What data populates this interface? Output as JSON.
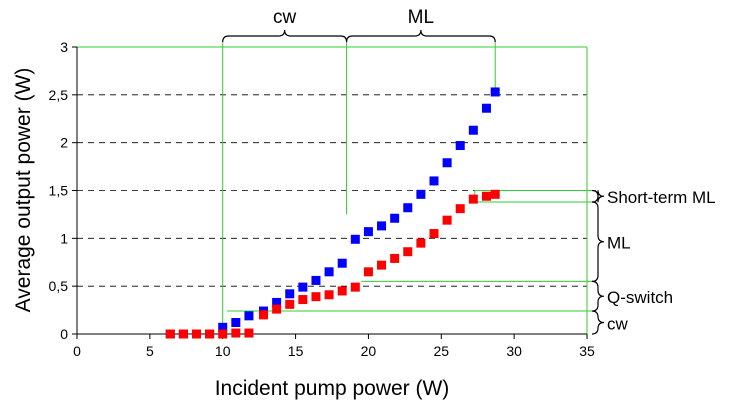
{
  "chart_data": {
    "type": "scatter",
    "xlabel": "Incident pump power (W)",
    "ylabel": "Average output power (W)",
    "xlim": [
      0,
      35
    ],
    "ylim": [
      0,
      3
    ],
    "x_ticks": [
      "0",
      "5",
      "10",
      "15",
      "20",
      "25",
      "30",
      "35"
    ],
    "y_ticks": [
      "0",
      "0,5",
      "1",
      "1,5",
      "2",
      "2,5",
      "3"
    ],
    "grid": "horizontal dashed",
    "series": [
      {
        "color": "#0000ff",
        "marker": "square",
        "points": [
          [
            6.4,
            0
          ],
          [
            7.3,
            0
          ],
          [
            8.2,
            0
          ],
          [
            9.1,
            0
          ],
          [
            10.0,
            0.07
          ],
          [
            10.9,
            0.12
          ],
          [
            11.8,
            0.19
          ],
          [
            12.8,
            0.24
          ],
          [
            13.7,
            0.33
          ],
          [
            14.6,
            0.42
          ],
          [
            15.5,
            0.49
          ],
          [
            16.4,
            0.56
          ],
          [
            17.3,
            0.65
          ],
          [
            18.2,
            0.74
          ],
          [
            19.1,
            0.99
          ],
          [
            20.0,
            1.07
          ],
          [
            20.9,
            1.13
          ],
          [
            21.8,
            1.21
          ],
          [
            22.7,
            1.32
          ],
          [
            23.6,
            1.46
          ],
          [
            24.5,
            1.6
          ],
          [
            25.4,
            1.79
          ],
          [
            26.3,
            1.97
          ],
          [
            27.2,
            2.13
          ],
          [
            28.1,
            2.36
          ],
          [
            28.7,
            2.53
          ]
        ]
      },
      {
        "color": "#ff0000",
        "marker": "square",
        "points": [
          [
            6.4,
            0
          ],
          [
            7.3,
            0
          ],
          [
            8.2,
            0
          ],
          [
            9.1,
            0
          ],
          [
            10.0,
            0
          ],
          [
            10.9,
            0.01
          ],
          [
            11.8,
            0.01
          ],
          [
            12.8,
            0.2
          ],
          [
            13.7,
            0.26
          ],
          [
            14.6,
            0.31
          ],
          [
            15.5,
            0.36
          ],
          [
            16.4,
            0.39
          ],
          [
            17.3,
            0.41
          ],
          [
            18.2,
            0.45
          ],
          [
            19.1,
            0.49
          ],
          [
            20.0,
            0.65
          ],
          [
            20.9,
            0.72
          ],
          [
            21.8,
            0.79
          ],
          [
            22.7,
            0.86
          ],
          [
            23.6,
            0.95
          ],
          [
            24.5,
            1.05
          ],
          [
            25.4,
            1.19
          ],
          [
            26.3,
            1.31
          ],
          [
            27.2,
            1.41
          ],
          [
            28.1,
            1.44
          ],
          [
            28.7,
            1.46
          ]
        ]
      }
    ],
    "regions_top": [
      {
        "label": "cw",
        "x_from": 10,
        "x_to": 18.5
      },
      {
        "label": "ML",
        "x_from": 18.5,
        "x_to": 28.7
      }
    ],
    "regions_right": [
      {
        "label": "Short-term ML",
        "y_from": 1.38,
        "y_to": 1.5
      },
      {
        "label": "ML",
        "y_from": 0.55,
        "y_to": 1.38
      },
      {
        "label": "Q-switch",
        "y_from": 0.24,
        "y_to": 0.55
      },
      {
        "label": "cw",
        "y_from": 0,
        "y_to": 0.24
      }
    ],
    "guide_color": "#33cc33"
  }
}
